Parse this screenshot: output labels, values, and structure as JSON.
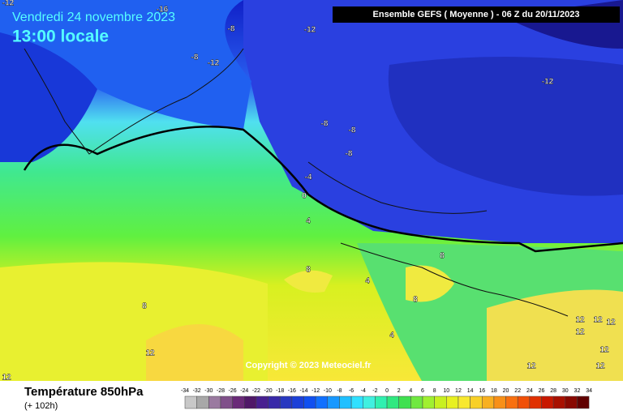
{
  "header": {
    "date": "Vendredi 24 novembre 2023",
    "time": "13:00 locale",
    "run": "Ensemble GEFS  ( Moyenne )  -  06 Z du 20/11/2023"
  },
  "copyright": "Copyright © 2023 Meteociel.fr",
  "contour_labels": [
    -12,
    -16,
    -8,
    -12,
    -8,
    -12,
    -12,
    -8,
    -8,
    -8,
    -4,
    0,
    4,
    8,
    8,
    8,
    8,
    4,
    12,
    12,
    12,
    12,
    12,
    12,
    12,
    12,
    12,
    4
  ],
  "legend": {
    "title": "Température 850hPa",
    "subtitle": "(+ 102h)",
    "scale": [
      -34,
      -32,
      -30,
      -28,
      -26,
      -24,
      -22,
      -20,
      -18,
      -16,
      -14,
      -12,
      -10,
      -8,
      -6,
      -4,
      -2,
      0,
      2,
      4,
      6,
      8,
      10,
      12,
      14,
      16,
      18,
      20,
      22,
      24,
      26,
      28,
      30,
      32,
      34
    ]
  }
}
